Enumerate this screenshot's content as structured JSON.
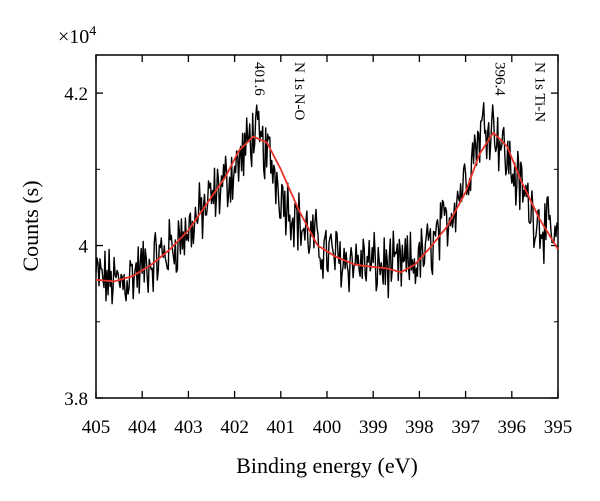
{
  "chart_data": {
    "type": "line",
    "title": "",
    "xlabel": "Binding energy (eV)",
    "ylabel": "Counts (s)",
    "y_multiplier": {
      "base": "×10",
      "exponent": "4"
    },
    "xlim": [
      405,
      395
    ],
    "x_reversed": true,
    "ylim": [
      3.8,
      4.25
    ],
    "x_ticks": [
      405,
      404,
      403,
      402,
      401,
      400,
      399,
      398,
      397,
      396,
      395
    ],
    "x_tick_labels": [
      "405",
      "404",
      "403",
      "402",
      "401",
      "400",
      "399",
      "398",
      "397",
      "396",
      "395"
    ],
    "y_ticks": [
      3.8,
      4.0,
      4.2
    ],
    "y_tick_labels": [
      "3.8",
      "4",
      "4.2"
    ],
    "y_minor_ticks": [
      3.9,
      4.1
    ],
    "grid": false,
    "legend": "none",
    "series": [
      {
        "name": "",
        "color": "#000000",
        "style": "noisy raw data",
        "x": [
          405,
          404.5,
          404,
          403.5,
          403,
          402.5,
          402,
          401.8,
          401.6,
          401.4,
          401.2,
          401,
          400.5,
          400,
          399.5,
          399,
          398.5,
          398,
          397.5,
          397,
          396.8,
          396.6,
          396.4,
          396.2,
          396,
          395.5,
          395
        ],
        "y": [
          3.96,
          3.95,
          3.97,
          3.99,
          4.02,
          4.06,
          4.1,
          4.12,
          4.15,
          4.13,
          4.11,
          4.07,
          4.02,
          3.99,
          3.98,
          3.975,
          3.97,
          3.98,
          4.02,
          4.09,
          4.13,
          4.16,
          4.16,
          4.13,
          4.1,
          4.04,
          4.0
        ]
      },
      {
        "name": "",
        "color": "#e8332a",
        "style": "smoothed fit",
        "x": [
          405,
          404.6,
          404.2,
          403.8,
          403.4,
          403,
          402.6,
          402.2,
          401.9,
          401.6,
          401.3,
          401,
          400.6,
          400.2,
          399.8,
          399.4,
          399,
          398.7,
          398.4,
          398.1,
          397.8,
          397.4,
          397,
          396.7,
          396.4,
          396.1,
          395.8,
          395.4,
          395
        ],
        "y": [
          3.955,
          3.953,
          3.96,
          3.975,
          3.995,
          4.02,
          4.055,
          4.09,
          4.125,
          4.143,
          4.135,
          4.1,
          4.045,
          4.0,
          3.985,
          3.975,
          3.972,
          3.97,
          3.965,
          3.975,
          3.995,
          4.025,
          4.07,
          4.12,
          4.148,
          4.13,
          4.085,
          4.035,
          3.995
        ]
      }
    ],
    "annotations": [
      {
        "value_label": "401.6",
        "label": "N 1s N-O",
        "x": 401.6
      },
      {
        "value_label": "396.4",
        "label": "N 1s Ti-N",
        "x": 396.4
      }
    ]
  }
}
